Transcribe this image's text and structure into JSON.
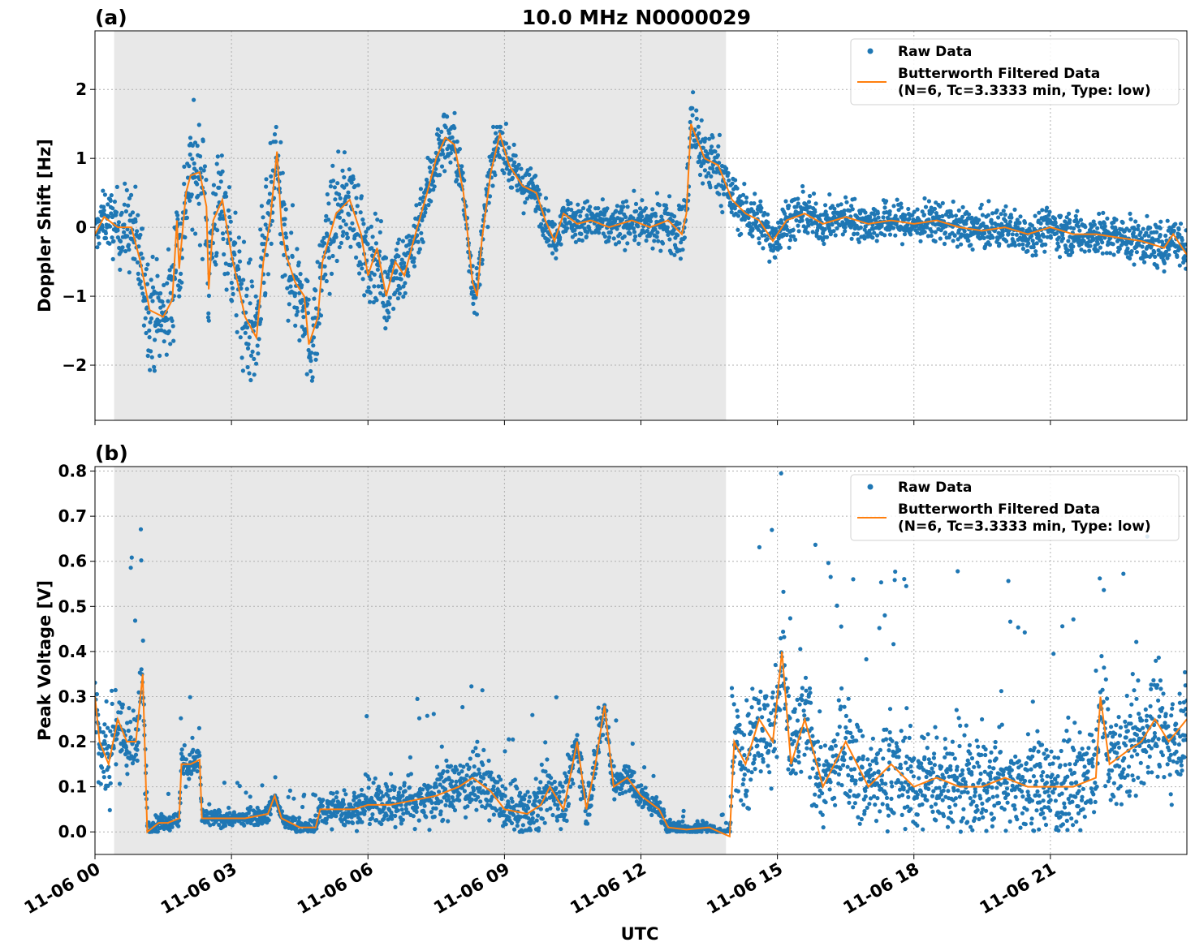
{
  "title": "10.0 MHz N0000029",
  "xlabel": "UTC",
  "x_tick_labels": [
    "11-06 00",
    "11-06 03",
    "11-06 06",
    "11-06 09",
    "11-06 12",
    "11-06 15",
    "11-06 18",
    "11-06 21"
  ],
  "colors": {
    "raw": "#1f77b4",
    "filtered": "#ff7f0e",
    "shade": "#e8e8e8",
    "grid": "#b0b0b0"
  },
  "chart_data": [
    {
      "type": "scatter",
      "panel_label": "(a)",
      "ylabel": "Doppler Shift [Hz]",
      "xlim_hours": [
        0,
        24
      ],
      "ylim": [
        -2.8,
        2.85
      ],
      "yticks": [
        -2,
        -1,
        0,
        1,
        2
      ],
      "ytick_labels": [
        "−2",
        "−1",
        "0",
        "1",
        "2"
      ],
      "shaded_region_hours": [
        0.42,
        13.87
      ],
      "grid": true,
      "legend_position": "top-right",
      "series": [
        {
          "name": "Raw Data",
          "kind": "scatter"
        },
        {
          "name": "Butterworth Filtered Data",
          "name_line2": "(N=6, Tc=3.3333 min, Type: low)",
          "kind": "line"
        }
      ],
      "filtered_points": [
        [
          0,
          -0.1
        ],
        [
          0.2,
          0.15
        ],
        [
          0.5,
          0.0
        ],
        [
          0.8,
          0.0
        ],
        [
          1.0,
          -0.5
        ],
        [
          1.2,
          -1.2
        ],
        [
          1.5,
          -1.3
        ],
        [
          1.7,
          -1.05
        ],
        [
          1.8,
          0.1
        ],
        [
          1.85,
          -0.6
        ],
        [
          2.0,
          0.5
        ],
        [
          2.1,
          0.75
        ],
        [
          2.3,
          0.8
        ],
        [
          2.45,
          0.3
        ],
        [
          2.5,
          -0.9
        ],
        [
          2.6,
          0.1
        ],
        [
          2.8,
          0.4
        ],
        [
          3.0,
          -0.4
        ],
        [
          3.3,
          -1.3
        ],
        [
          3.55,
          -1.6
        ],
        [
          3.7,
          -0.5
        ],
        [
          3.85,
          0.1
        ],
        [
          4.0,
          1.1
        ],
        [
          4.1,
          0.0
        ],
        [
          4.2,
          -0.4
        ],
        [
          4.4,
          -0.8
        ],
        [
          4.6,
          -1.0
        ],
        [
          4.7,
          -1.7
        ],
        [
          4.9,
          -1.3
        ],
        [
          5.0,
          -0.5
        ],
        [
          5.3,
          0.2
        ],
        [
          5.6,
          0.4
        ],
        [
          5.85,
          -0.1
        ],
        [
          6.0,
          -0.7
        ],
        [
          6.2,
          -0.3
        ],
        [
          6.4,
          -1.0
        ],
        [
          6.6,
          -0.5
        ],
        [
          6.8,
          -0.7
        ],
        [
          7.0,
          -0.2
        ],
        [
          7.3,
          0.5
        ],
        [
          7.5,
          1.0
        ],
        [
          7.7,
          1.3
        ],
        [
          7.9,
          1.2
        ],
        [
          8.1,
          0.5
        ],
        [
          8.3,
          -0.8
        ],
        [
          8.4,
          -1.0
        ],
        [
          8.5,
          -0.2
        ],
        [
          8.7,
          0.8
        ],
        [
          8.9,
          1.35
        ],
        [
          9.1,
          0.9
        ],
        [
          9.4,
          0.6
        ],
        [
          9.7,
          0.5
        ],
        [
          9.9,
          0.1
        ],
        [
          10.1,
          -0.2
        ],
        [
          10.3,
          0.2
        ],
        [
          10.6,
          0.05
        ],
        [
          10.9,
          0.1
        ],
        [
          11.3,
          0.0
        ],
        [
          11.8,
          0.1
        ],
        [
          12.2,
          0.0
        ],
        [
          12.6,
          0.1
        ],
        [
          12.9,
          -0.1
        ],
        [
          13.0,
          0.2
        ],
        [
          13.1,
          1.5
        ],
        [
          13.4,
          1.0
        ],
        [
          13.7,
          0.9
        ],
        [
          14.0,
          0.4
        ],
        [
          14.3,
          0.2
        ],
        [
          14.6,
          0.1
        ],
        [
          14.9,
          -0.2
        ],
        [
          15.2,
          0.1
        ],
        [
          15.6,
          0.2
        ],
        [
          16.0,
          0.05
        ],
        [
          16.5,
          0.15
        ],
        [
          17.0,
          0.05
        ],
        [
          17.5,
          0.1
        ],
        [
          18.0,
          0.05
        ],
        [
          18.5,
          0.1
        ],
        [
          19.0,
          0.0
        ],
        [
          19.5,
          -0.05
        ],
        [
          20.0,
          0.0
        ],
        [
          20.5,
          -0.1
        ],
        [
          21.0,
          0.0
        ],
        [
          21.5,
          -0.1
        ],
        [
          22.0,
          -0.1
        ],
        [
          22.5,
          -0.15
        ],
        [
          23.0,
          -0.2
        ],
        [
          23.5,
          -0.3
        ],
        [
          23.7,
          -0.1
        ],
        [
          24.0,
          -0.4
        ]
      ],
      "raw_spread": [
        [
          0,
          0.3
        ],
        [
          1.0,
          0.8
        ],
        [
          2.5,
          0.9
        ],
        [
          3.5,
          1.0
        ],
        [
          4.8,
          0.8
        ],
        [
          6.0,
          0.7
        ],
        [
          7.5,
          0.5
        ],
        [
          8.3,
          0.4
        ],
        [
          10.0,
          0.3
        ],
        [
          12.5,
          0.35
        ],
        [
          13.2,
          0.6
        ],
        [
          14.0,
          0.4
        ],
        [
          16.0,
          0.3
        ],
        [
          20.0,
          0.3
        ],
        [
          24.0,
          0.35
        ]
      ]
    },
    {
      "type": "scatter",
      "panel_label": "(b)",
      "ylabel": "Peak Voltage [V]",
      "xlim_hours": [
        0,
        24
      ],
      "ylim": [
        -0.05,
        0.81
      ],
      "yticks": [
        0.0,
        0.1,
        0.2,
        0.3,
        0.4,
        0.5,
        0.6,
        0.7,
        0.8
      ],
      "ytick_labels": [
        "0.0",
        "0.1",
        "0.2",
        "0.3",
        "0.4",
        "0.5",
        "0.6",
        "0.7",
        "0.8"
      ],
      "shaded_region_hours": [
        0.42,
        13.87
      ],
      "grid": true,
      "legend_position": "top-right",
      "series": [
        {
          "name": "Raw Data",
          "kind": "scatter"
        },
        {
          "name": "Butterworth Filtered Data",
          "name_line2": "(N=6, Tc=3.3333 min, Type: low)",
          "kind": "line"
        }
      ],
      "filtered_points": [
        [
          0,
          0.3
        ],
        [
          0.1,
          0.2
        ],
        [
          0.3,
          0.15
        ],
        [
          0.5,
          0.25
        ],
        [
          0.7,
          0.2
        ],
        [
          0.9,
          0.2
        ],
        [
          1.05,
          0.35
        ],
        [
          1.15,
          0.0
        ],
        [
          1.4,
          0.02
        ],
        [
          1.6,
          0.02
        ],
        [
          1.85,
          0.03
        ],
        [
          1.9,
          0.15
        ],
        [
          2.1,
          0.15
        ],
        [
          2.3,
          0.16
        ],
        [
          2.35,
          0.03
        ],
        [
          2.8,
          0.03
        ],
        [
          3.3,
          0.03
        ],
        [
          3.8,
          0.04
        ],
        [
          3.95,
          0.08
        ],
        [
          4.1,
          0.03
        ],
        [
          4.5,
          0.01
        ],
        [
          4.85,
          0.01
        ],
        [
          4.95,
          0.05
        ],
        [
          5.3,
          0.05
        ],
        [
          5.7,
          0.05
        ],
        [
          6.0,
          0.06
        ],
        [
          6.5,
          0.06
        ],
        [
          7.0,
          0.07
        ],
        [
          7.5,
          0.08
        ],
        [
          8.0,
          0.1
        ],
        [
          8.3,
          0.12
        ],
        [
          8.7,
          0.09
        ],
        [
          9.0,
          0.05
        ],
        [
          9.5,
          0.04
        ],
        [
          9.8,
          0.06
        ],
        [
          10.0,
          0.1
        ],
        [
          10.3,
          0.05
        ],
        [
          10.6,
          0.2
        ],
        [
          10.8,
          0.05
        ],
        [
          11.0,
          0.15
        ],
        [
          11.2,
          0.28
        ],
        [
          11.4,
          0.1
        ],
        [
          11.7,
          0.12
        ],
        [
          12.0,
          0.08
        ],
        [
          12.4,
          0.05
        ],
        [
          12.6,
          0.01
        ],
        [
          13.0,
          0.005
        ],
        [
          13.5,
          0.01
        ],
        [
          13.95,
          -0.01
        ],
        [
          14.05,
          0.2
        ],
        [
          14.3,
          0.15
        ],
        [
          14.6,
          0.25
        ],
        [
          14.9,
          0.2
        ],
        [
          15.1,
          0.4
        ],
        [
          15.3,
          0.15
        ],
        [
          15.6,
          0.25
        ],
        [
          16.0,
          0.1
        ],
        [
          16.5,
          0.2
        ],
        [
          17.0,
          0.1
        ],
        [
          17.5,
          0.15
        ],
        [
          18.0,
          0.1
        ],
        [
          18.5,
          0.12
        ],
        [
          19.0,
          0.1
        ],
        [
          19.5,
          0.1
        ],
        [
          20.0,
          0.12
        ],
        [
          20.5,
          0.1
        ],
        [
          21.0,
          0.1
        ],
        [
          21.5,
          0.1
        ],
        [
          22.0,
          0.12
        ],
        [
          22.1,
          0.3
        ],
        [
          22.3,
          0.15
        ],
        [
          22.7,
          0.18
        ],
        [
          23.0,
          0.2
        ],
        [
          23.3,
          0.25
        ],
        [
          23.6,
          0.2
        ],
        [
          24.0,
          0.25
        ]
      ],
      "raw_spread": [
        [
          0,
          0.12
        ],
        [
          1.1,
          0.1
        ],
        [
          1.2,
          0.02
        ],
        [
          1.8,
          0.02
        ],
        [
          2.0,
          0.05
        ],
        [
          2.4,
          0.02
        ],
        [
          4.9,
          0.02
        ],
        [
          5.0,
          0.04
        ],
        [
          8.0,
          0.07
        ],
        [
          10.5,
          0.06
        ],
        [
          12.5,
          0.02
        ],
        [
          13.9,
          0.01
        ],
        [
          14.1,
          0.12
        ],
        [
          24.0,
          0.12
        ]
      ]
    }
  ]
}
